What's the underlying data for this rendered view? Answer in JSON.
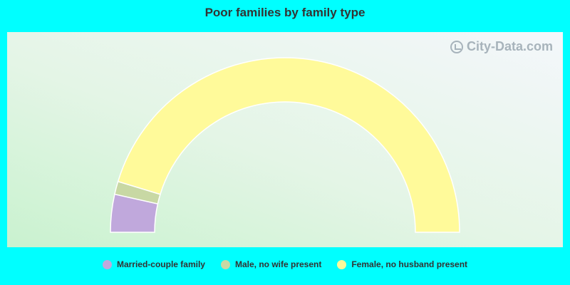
{
  "chart_data": {
    "type": "pie",
    "title": "Poor families by family type",
    "categories": [
      "Married-couple family",
      "Male, no wife present",
      "Female, no husband present"
    ],
    "values": [
      7.0,
      2.4,
      90.6
    ],
    "colors": [
      "#c0a8dc",
      "#c8d8a4",
      "#fffa9a"
    ],
    "legend_position": "bottom"
  },
  "watermark": {
    "text": "City-Data.com",
    "icon": "city-data-logo-icon"
  }
}
